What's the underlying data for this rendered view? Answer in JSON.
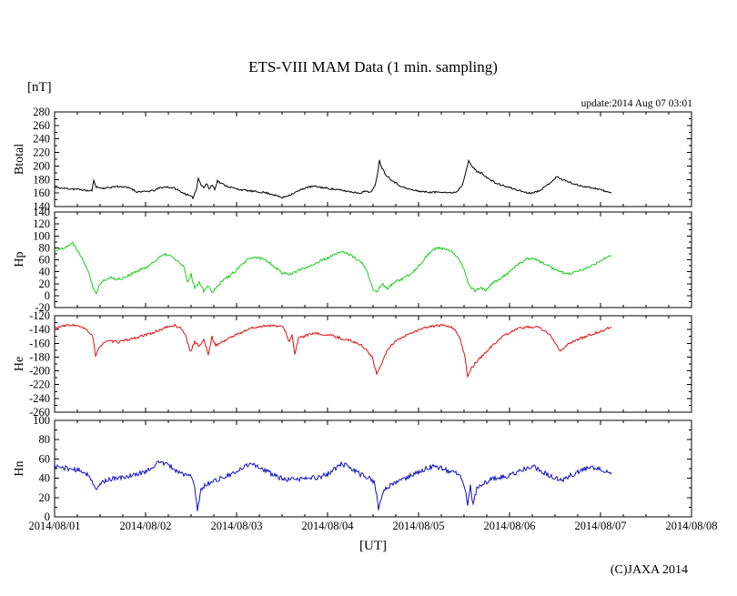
{
  "title": "ETS-VIII MAM Data (1 min. sampling)",
  "unit_label": "[nT]",
  "update_text": "update:2014 Aug 07 03:01",
  "xaxis_label": "[UT]",
  "copyright": "(C)JAXA 2014",
  "x_axis": {
    "lim": [
      1,
      8
    ],
    "tick_labels": [
      "2014/08/01",
      "2014/08/02",
      "2014/08/03",
      "2014/08/04",
      "2014/08/05",
      "2014/08/06",
      "2014/08/07",
      "2014/08/08"
    ],
    "minor_divisions": 4
  },
  "chart_data": [
    {
      "type": "line",
      "name": "Btotal",
      "ylabel": "Btotal",
      "color": "#000000",
      "ylim": [
        140,
        280
      ],
      "ytick_step": 20,
      "ytick_minor": 10,
      "grid": false,
      "noise": 1.3,
      "seed": 11,
      "points": [
        [
          1.0,
          168
        ],
        [
          1.1,
          167
        ],
        [
          1.2,
          166
        ],
        [
          1.3,
          165
        ],
        [
          1.38,
          163
        ],
        [
          1.41,
          164
        ],
        [
          1.43,
          178
        ],
        [
          1.46,
          169
        ],
        [
          1.52,
          167
        ],
        [
          1.6,
          168
        ],
        [
          1.68,
          170
        ],
        [
          1.76,
          169
        ],
        [
          1.84,
          167
        ],
        [
          1.9,
          162
        ],
        [
          2.0,
          162
        ],
        [
          2.1,
          164
        ],
        [
          2.16,
          168
        ],
        [
          2.24,
          169
        ],
        [
          2.32,
          167
        ],
        [
          2.4,
          161
        ],
        [
          2.48,
          156
        ],
        [
          2.52,
          153
        ],
        [
          2.56,
          166
        ],
        [
          2.58,
          183
        ],
        [
          2.61,
          172
        ],
        [
          2.64,
          168
        ],
        [
          2.67,
          174
        ],
        [
          2.7,
          166
        ],
        [
          2.73,
          172
        ],
        [
          2.76,
          166
        ],
        [
          2.79,
          178
        ],
        [
          2.82,
          175
        ],
        [
          2.9,
          170
        ],
        [
          3.0,
          166
        ],
        [
          3.1,
          164
        ],
        [
          3.2,
          162
        ],
        [
          3.3,
          161
        ],
        [
          3.4,
          158
        ],
        [
          3.5,
          153
        ],
        [
          3.58,
          157
        ],
        [
          3.68,
          163
        ],
        [
          3.76,
          168
        ],
        [
          3.85,
          170
        ],
        [
          3.95,
          168
        ],
        [
          4.05,
          166
        ],
        [
          4.15,
          164
        ],
        [
          4.25,
          162
        ],
        [
          4.35,
          160
        ],
        [
          4.43,
          163
        ],
        [
          4.48,
          161
        ],
        [
          4.52,
          170
        ],
        [
          4.55,
          190
        ],
        [
          4.57,
          208
        ],
        [
          4.6,
          197
        ],
        [
          4.64,
          187
        ],
        [
          4.7,
          180
        ],
        [
          4.78,
          172
        ],
        [
          4.86,
          167
        ],
        [
          4.95,
          164
        ],
        [
          5.05,
          162
        ],
        [
          5.15,
          161
        ],
        [
          5.25,
          162
        ],
        [
          5.35,
          160
        ],
        [
          5.42,
          162
        ],
        [
          5.48,
          172
        ],
        [
          5.52,
          192
        ],
        [
          5.55,
          207
        ],
        [
          5.59,
          199
        ],
        [
          5.64,
          192
        ],
        [
          5.7,
          189
        ],
        [
          5.78,
          180
        ],
        [
          5.86,
          174
        ],
        [
          5.95,
          170
        ],
        [
          6.05,
          166
        ],
        [
          6.15,
          162
        ],
        [
          6.22,
          160
        ],
        [
          6.3,
          162
        ],
        [
          6.38,
          168
        ],
        [
          6.46,
          177
        ],
        [
          6.52,
          184
        ],
        [
          6.58,
          180
        ],
        [
          6.66,
          176
        ],
        [
          6.74,
          172
        ],
        [
          6.82,
          170
        ],
        [
          6.9,
          168
        ],
        [
          6.98,
          166
        ],
        [
          7.06,
          162
        ],
        [
          7.12,
          160
        ]
      ]
    },
    {
      "type": "line",
      "name": "Hp",
      "ylabel": "Hp",
      "color": "#1ecc1e",
      "ylim": [
        -20,
        140
      ],
      "ytick_step": 20,
      "ytick_minor": 10,
      "grid": false,
      "noise": 2.2,
      "seed": 22,
      "points": [
        [
          1.0,
          75
        ],
        [
          1.08,
          79
        ],
        [
          1.15,
          84
        ],
        [
          1.2,
          88
        ],
        [
          1.26,
          74
        ],
        [
          1.32,
          58
        ],
        [
          1.38,
          38
        ],
        [
          1.43,
          10
        ],
        [
          1.46,
          5
        ],
        [
          1.5,
          20
        ],
        [
          1.55,
          26
        ],
        [
          1.62,
          30
        ],
        [
          1.7,
          27
        ],
        [
          1.8,
          33
        ],
        [
          1.9,
          40
        ],
        [
          2.0,
          47
        ],
        [
          2.08,
          55
        ],
        [
          2.15,
          64
        ],
        [
          2.22,
          69
        ],
        [
          2.28,
          66
        ],
        [
          2.35,
          58
        ],
        [
          2.42,
          48
        ],
        [
          2.46,
          22
        ],
        [
          2.5,
          36
        ],
        [
          2.54,
          12
        ],
        [
          2.59,
          24
        ],
        [
          2.64,
          8
        ],
        [
          2.69,
          18
        ],
        [
          2.73,
          5
        ],
        [
          2.78,
          15
        ],
        [
          2.85,
          26
        ],
        [
          2.95,
          36
        ],
        [
          3.05,
          50
        ],
        [
          3.12,
          60
        ],
        [
          3.2,
          64
        ],
        [
          3.28,
          62
        ],
        [
          3.35,
          57
        ],
        [
          3.42,
          48
        ],
        [
          3.5,
          38
        ],
        [
          3.58,
          36
        ],
        [
          3.7,
          43
        ],
        [
          3.85,
          53
        ],
        [
          4.0,
          63
        ],
        [
          4.1,
          70
        ],
        [
          4.17,
          74
        ],
        [
          4.27,
          66
        ],
        [
          4.37,
          56
        ],
        [
          4.44,
          38
        ],
        [
          4.49,
          14
        ],
        [
          4.54,
          5
        ],
        [
          4.6,
          20
        ],
        [
          4.66,
          12
        ],
        [
          4.73,
          22
        ],
        [
          4.83,
          28
        ],
        [
          4.93,
          38
        ],
        [
          5.03,
          55
        ],
        [
          5.12,
          72
        ],
        [
          5.2,
          80
        ],
        [
          5.28,
          78
        ],
        [
          5.36,
          74
        ],
        [
          5.44,
          64
        ],
        [
          5.5,
          45
        ],
        [
          5.55,
          18
        ],
        [
          5.62,
          8
        ],
        [
          5.68,
          14
        ],
        [
          5.74,
          8
        ],
        [
          5.82,
          22
        ],
        [
          5.92,
          30
        ],
        [
          6.02,
          42
        ],
        [
          6.1,
          53
        ],
        [
          6.18,
          61
        ],
        [
          6.25,
          63
        ],
        [
          6.32,
          58
        ],
        [
          6.4,
          52
        ],
        [
          6.5,
          44
        ],
        [
          6.58,
          39
        ],
        [
          6.65,
          36
        ],
        [
          6.74,
          40
        ],
        [
          6.84,
          46
        ],
        [
          6.94,
          53
        ],
        [
          7.04,
          61
        ],
        [
          7.12,
          67
        ]
      ]
    },
    {
      "type": "line",
      "name": "He",
      "ylabel": "He",
      "color": "#dd1111",
      "ylim": [
        -260,
        -120
      ],
      "ytick_step": 20,
      "ytick_minor": 10,
      "grid": false,
      "noise": 1.8,
      "seed": 33,
      "points": [
        [
          1.0,
          -138
        ],
        [
          1.1,
          -135
        ],
        [
          1.18,
          -133
        ],
        [
          1.28,
          -136
        ],
        [
          1.36,
          -141
        ],
        [
          1.42,
          -150
        ],
        [
          1.45,
          -180
        ],
        [
          1.49,
          -165
        ],
        [
          1.55,
          -158
        ],
        [
          1.62,
          -157
        ],
        [
          1.7,
          -158
        ],
        [
          1.78,
          -156
        ],
        [
          1.86,
          -153
        ],
        [
          1.95,
          -150
        ],
        [
          2.05,
          -146
        ],
        [
          2.15,
          -141
        ],
        [
          2.25,
          -136
        ],
        [
          2.32,
          -134
        ],
        [
          2.4,
          -139
        ],
        [
          2.45,
          -152
        ],
        [
          2.49,
          -173
        ],
        [
          2.54,
          -158
        ],
        [
          2.59,
          -164
        ],
        [
          2.64,
          -155
        ],
        [
          2.69,
          -176
        ],
        [
          2.73,
          -151
        ],
        [
          2.77,
          -163
        ],
        [
          2.84,
          -158
        ],
        [
          2.94,
          -151
        ],
        [
          3.04,
          -145
        ],
        [
          3.14,
          -139
        ],
        [
          3.24,
          -136
        ],
        [
          3.34,
          -134
        ],
        [
          3.44,
          -135
        ],
        [
          3.52,
          -137
        ],
        [
          3.58,
          -158
        ],
        [
          3.61,
          -148
        ],
        [
          3.64,
          -176
        ],
        [
          3.68,
          -153
        ],
        [
          3.75,
          -149
        ],
        [
          3.85,
          -146
        ],
        [
          3.95,
          -147
        ],
        [
          4.05,
          -149
        ],
        [
          4.15,
          -153
        ],
        [
          4.25,
          -156
        ],
        [
          4.35,
          -161
        ],
        [
          4.43,
          -170
        ],
        [
          4.49,
          -180
        ],
        [
          4.54,
          -205
        ],
        [
          4.59,
          -190
        ],
        [
          4.65,
          -172
        ],
        [
          4.72,
          -160
        ],
        [
          4.82,
          -152
        ],
        [
          4.92,
          -145
        ],
        [
          5.02,
          -140
        ],
        [
          5.12,
          -136
        ],
        [
          5.22,
          -134
        ],
        [
          5.32,
          -135
        ],
        [
          5.4,
          -139
        ],
        [
          5.46,
          -155
        ],
        [
          5.51,
          -180
        ],
        [
          5.54,
          -210
        ],
        [
          5.58,
          -196
        ],
        [
          5.64,
          -186
        ],
        [
          5.72,
          -176
        ],
        [
          5.82,
          -162
        ],
        [
          5.92,
          -151
        ],
        [
          6.02,
          -143
        ],
        [
          6.12,
          -138
        ],
        [
          6.22,
          -136
        ],
        [
          6.32,
          -137
        ],
        [
          6.42,
          -145
        ],
        [
          6.5,
          -158
        ],
        [
          6.56,
          -172
        ],
        [
          6.62,
          -163
        ],
        [
          6.72,
          -156
        ],
        [
          6.82,
          -151
        ],
        [
          6.92,
          -146
        ],
        [
          7.02,
          -142
        ],
        [
          7.12,
          -136
        ]
      ]
    },
    {
      "type": "line",
      "name": "Hn",
      "ylabel": "Hn",
      "color": "#1111bb",
      "ylim": [
        0,
        100
      ],
      "ytick_step": 20,
      "ytick_minor": 10,
      "grid": false,
      "noise": 2.4,
      "seed": 44,
      "points": [
        [
          1.0,
          53
        ],
        [
          1.08,
          51
        ],
        [
          1.16,
          50
        ],
        [
          1.26,
          48
        ],
        [
          1.34,
          46
        ],
        [
          1.4,
          40
        ],
        [
          1.45,
          27
        ],
        [
          1.52,
          36
        ],
        [
          1.6,
          39
        ],
        [
          1.7,
          40
        ],
        [
          1.8,
          42
        ],
        [
          1.9,
          44
        ],
        [
          2.0,
          47
        ],
        [
          2.08,
          52
        ],
        [
          2.15,
          57
        ],
        [
          2.25,
          54
        ],
        [
          2.35,
          47
        ],
        [
          2.43,
          44
        ],
        [
          2.5,
          42
        ],
        [
          2.54,
          30
        ],
        [
          2.57,
          8
        ],
        [
          2.61,
          28
        ],
        [
          2.67,
          34
        ],
        [
          2.77,
          38
        ],
        [
          2.89,
          42
        ],
        [
          3.0,
          46
        ],
        [
          3.1,
          53
        ],
        [
          3.17,
          56
        ],
        [
          3.27,
          50
        ],
        [
          3.36,
          46
        ],
        [
          3.46,
          41
        ],
        [
          3.56,
          38
        ],
        [
          3.66,
          39
        ],
        [
          3.78,
          40
        ],
        [
          3.9,
          41
        ],
        [
          4.0,
          44
        ],
        [
          4.08,
          50
        ],
        [
          4.16,
          55
        ],
        [
          4.26,
          50
        ],
        [
          4.36,
          44
        ],
        [
          4.45,
          41
        ],
        [
          4.52,
          35
        ],
        [
          4.56,
          8
        ],
        [
          4.62,
          28
        ],
        [
          4.7,
          33
        ],
        [
          4.8,
          38
        ],
        [
          4.9,
          42
        ],
        [
          5.0,
          46
        ],
        [
          5.1,
          51
        ],
        [
          5.18,
          53
        ],
        [
          5.28,
          49
        ],
        [
          5.38,
          46
        ],
        [
          5.46,
          43
        ],
        [
          5.51,
          30
        ],
        [
          5.54,
          14
        ],
        [
          5.57,
          32
        ],
        [
          5.6,
          12
        ],
        [
          5.64,
          30
        ],
        [
          5.7,
          34
        ],
        [
          5.8,
          39
        ],
        [
          5.9,
          41
        ],
        [
          6.0,
          43
        ],
        [
          6.1,
          47
        ],
        [
          6.18,
          50
        ],
        [
          6.27,
          52
        ],
        [
          6.37,
          46
        ],
        [
          6.47,
          41
        ],
        [
          6.57,
          38
        ],
        [
          6.67,
          43
        ],
        [
          6.77,
          47
        ],
        [
          6.87,
          51
        ],
        [
          6.97,
          50
        ],
        [
          7.06,
          48
        ],
        [
          7.12,
          46
        ]
      ]
    }
  ]
}
